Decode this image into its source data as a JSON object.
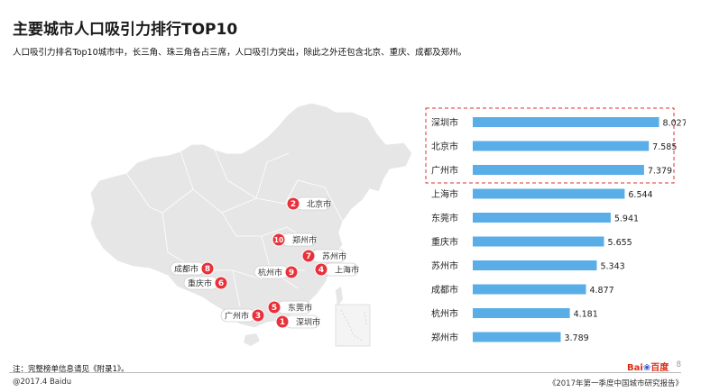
{
  "header": {
    "title": "主要城市人口吸引力排行TOP10",
    "subtitle": "人口吸引力排名Top10城市中，长三角、珠三角各占三席，人口吸引力突出，除此之外还包含北京、重庆、成都及郑州。"
  },
  "map_labels": [
    {
      "rank": "2",
      "city": "北京市"
    },
    {
      "rank": "10",
      "city": "郑州市"
    },
    {
      "rank": "7",
      "city": "苏州市"
    },
    {
      "rank": "9",
      "city": "杭州市"
    },
    {
      "rank": "4",
      "city": "上海市"
    },
    {
      "rank": "8",
      "city": "成都市"
    },
    {
      "rank": "6",
      "city": "重庆市"
    },
    {
      "rank": "5",
      "city": "东莞市"
    },
    {
      "rank": "3",
      "city": "广州市"
    },
    {
      "rank": "1",
      "city": "深圳市"
    }
  ],
  "chart_data": {
    "type": "bar",
    "orientation": "horizontal",
    "categories": [
      "深圳市",
      "北京市",
      "广州市",
      "上海市",
      "东莞市",
      "重庆市",
      "苏州市",
      "成都市",
      "杭州市",
      "郑州市"
    ],
    "values": [
      8.027,
      7.585,
      7.379,
      6.544,
      5.941,
      5.655,
      5.343,
      4.877,
      4.181,
      3.789
    ],
    "value_labels": [
      "8.027",
      "7.585",
      "7.379",
      "6.544",
      "5.941",
      "5.655",
      "5.343",
      "4.877",
      "4.181",
      "3.789"
    ],
    "highlighted": [
      "深圳市",
      "北京市",
      "广州市"
    ],
    "xlim": [
      0,
      8.2
    ],
    "grid": false,
    "bar_color": "#5aaee8",
    "highlight_border_color": "#e03030"
  },
  "colors": {
    "marker": "#e8313a",
    "map_fill": "#e6e6e6"
  },
  "footer": {
    "note": "注：完整榜单信息请见《附录1》。",
    "left": "@2017.4 Baidu",
    "right": "《2017年第一季度中国城市研究报告》",
    "page": "8",
    "logo_bai": "Bai",
    "logo_paw": "du",
    "logo_cn": "百度"
  }
}
